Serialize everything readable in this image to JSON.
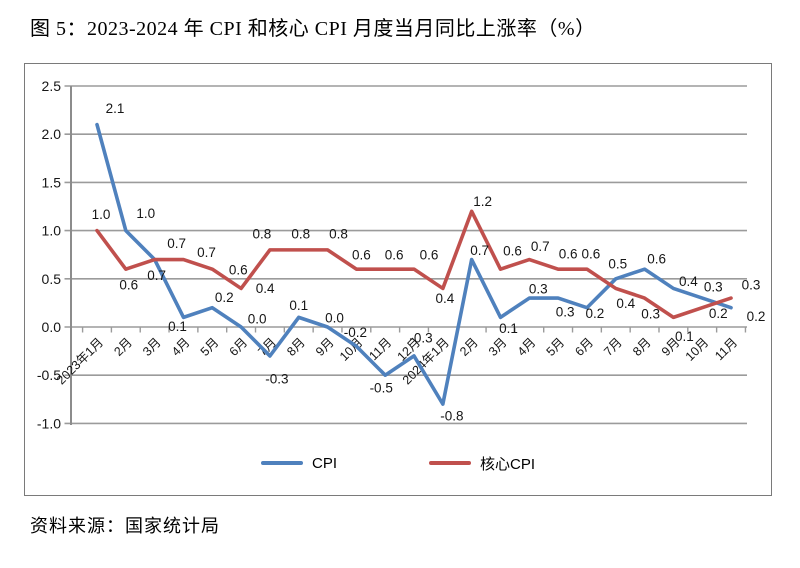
{
  "title": "图 5：2023-2024 年 CPI 和核心 CPI 月度当月同比上涨率（%）",
  "source": "资料来源：国家统计局",
  "chart_data": {
    "type": "line",
    "categories": [
      "2023年1月",
      "2月",
      "3月",
      "4月",
      "5月",
      "6月",
      "7月",
      "8月",
      "9月",
      "10月",
      "11月",
      "12月",
      "2024年1月",
      "2月",
      "3月",
      "4月",
      "5月",
      "6月",
      "7月",
      "8月",
      "9月",
      "10月",
      "11月"
    ],
    "series": [
      {
        "name": "CPI",
        "color": "#4F81BD",
        "values": [
          2.1,
          1.0,
          0.7,
          0.1,
          0.2,
          0.0,
          -0.3,
          0.1,
          0.0,
          -0.2,
          -0.5,
          -0.3,
          -0.8,
          0.7,
          0.1,
          0.3,
          0.3,
          0.2,
          0.5,
          0.6,
          0.4,
          0.3,
          0.2
        ]
      },
      {
        "name": "核心CPI",
        "color": "#C0504D",
        "values": [
          1.0,
          0.6,
          0.7,
          0.7,
          0.6,
          0.4,
          0.8,
          0.8,
          0.8,
          0.6,
          0.6,
          0.6,
          0.4,
          1.2,
          0.6,
          0.7,
          0.6,
          0.6,
          0.4,
          0.3,
          0.1,
          0.2,
          0.3
        ]
      }
    ],
    "title": "图 5：2023-2024 年 CPI 和核心 CPI 月度当月同比上涨率（%）",
    "xlabel": "",
    "ylabel": "",
    "yticks": [
      2.5,
      2.0,
      1.5,
      1.0,
      0.5,
      0.0,
      -0.5,
      -1.0
    ],
    "ylim": [
      -1.0,
      2.5
    ],
    "grid": true,
    "data_labels": true,
    "legend_position": "bottom"
  },
  "colors": {
    "grid": "#9b9b9b",
    "axis": "#8c8c8c",
    "text": "#161616",
    "border": "#7a7a7a"
  }
}
